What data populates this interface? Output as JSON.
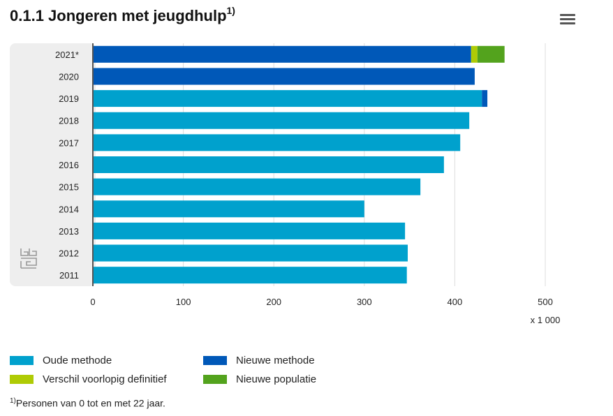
{
  "header": {
    "title": "0.1.1 Jongeren met jeugdhulp",
    "title_sup": "1)"
  },
  "menu": {
    "icon": "hamburger-menu-icon"
  },
  "logo": {
    "icon": "cbs-logo-icon"
  },
  "chart_data": {
    "type": "bar",
    "orientation": "horizontal",
    "stacked": true,
    "title": "0.1.1 Jongeren met jeugdhulp",
    "categories": [
      "2021*",
      "2020",
      "2019",
      "2018",
      "2017",
      "2016",
      "2015",
      "2014",
      "2013",
      "2012",
      "2011"
    ],
    "series": [
      {
        "name": "Oude methode",
        "color": "#00a1cd",
        "values": [
          0,
          0,
          430,
          416,
          406,
          388,
          362,
          300,
          345,
          348,
          347
        ]
      },
      {
        "name": "Nieuwe methode",
        "color": "#0058b8",
        "values": [
          418,
          422,
          6,
          0,
          0,
          0,
          0,
          0,
          0,
          0,
          0
        ]
      },
      {
        "name": "Verschil voorlopig definitief",
        "color": "#afcb05",
        "values": [
          7,
          0,
          0,
          0,
          0,
          0,
          0,
          0,
          0,
          0,
          0
        ]
      },
      {
        "name": "Nieuwe populatie",
        "color": "#53a31d",
        "values": [
          30,
          0,
          0,
          0,
          0,
          0,
          0,
          0,
          0,
          0,
          0
        ]
      }
    ],
    "xlim": [
      0,
      500
    ],
    "xticks": [
      "0",
      "100",
      "200",
      "300",
      "400",
      "500"
    ],
    "unit": "x 1 000",
    "grid": true,
    "legend_position": "bottom"
  },
  "footnote": {
    "sup": "1)",
    "text": "Personen van 0 tot en met 22 jaar."
  }
}
